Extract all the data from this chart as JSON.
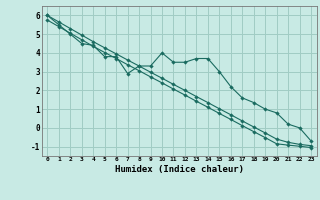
{
  "title": "",
  "xlabel": "Humidex (Indice chaleur)",
  "xlim": [
    -0.5,
    23.5
  ],
  "ylim": [
    -1.5,
    6.5
  ],
  "yticks": [
    -1,
    0,
    1,
    2,
    3,
    4,
    5,
    6
  ],
  "xticks": [
    0,
    1,
    2,
    3,
    4,
    5,
    6,
    7,
    8,
    9,
    10,
    11,
    12,
    13,
    14,
    15,
    16,
    17,
    18,
    19,
    20,
    21,
    22,
    23
  ],
  "background_color": "#c8eae4",
  "grid_color": "#a0ccc4",
  "line_color": "#1a6b60",
  "data_line": [
    6.0,
    5.5,
    5.0,
    4.5,
    4.4,
    3.8,
    3.8,
    2.9,
    3.3,
    3.3,
    4.0,
    3.5,
    3.5,
    3.7,
    3.7,
    3.0,
    2.2,
    1.6,
    1.35,
    1.0,
    0.8,
    0.2,
    0.0,
    -0.7
  ],
  "upper_line": [
    6.0,
    5.65,
    5.3,
    4.95,
    4.6,
    4.27,
    3.95,
    3.62,
    3.3,
    2.97,
    2.65,
    2.32,
    2.0,
    1.67,
    1.35,
    1.02,
    0.7,
    0.37,
    0.05,
    -0.27,
    -0.6,
    -0.77,
    -0.88,
    -0.95
  ],
  "lower_line": [
    5.75,
    5.4,
    5.05,
    4.7,
    4.35,
    4.02,
    3.7,
    3.37,
    3.05,
    2.72,
    2.4,
    2.07,
    1.75,
    1.42,
    1.1,
    0.77,
    0.45,
    0.12,
    -0.2,
    -0.52,
    -0.85,
    -0.92,
    -0.98,
    -1.05
  ]
}
